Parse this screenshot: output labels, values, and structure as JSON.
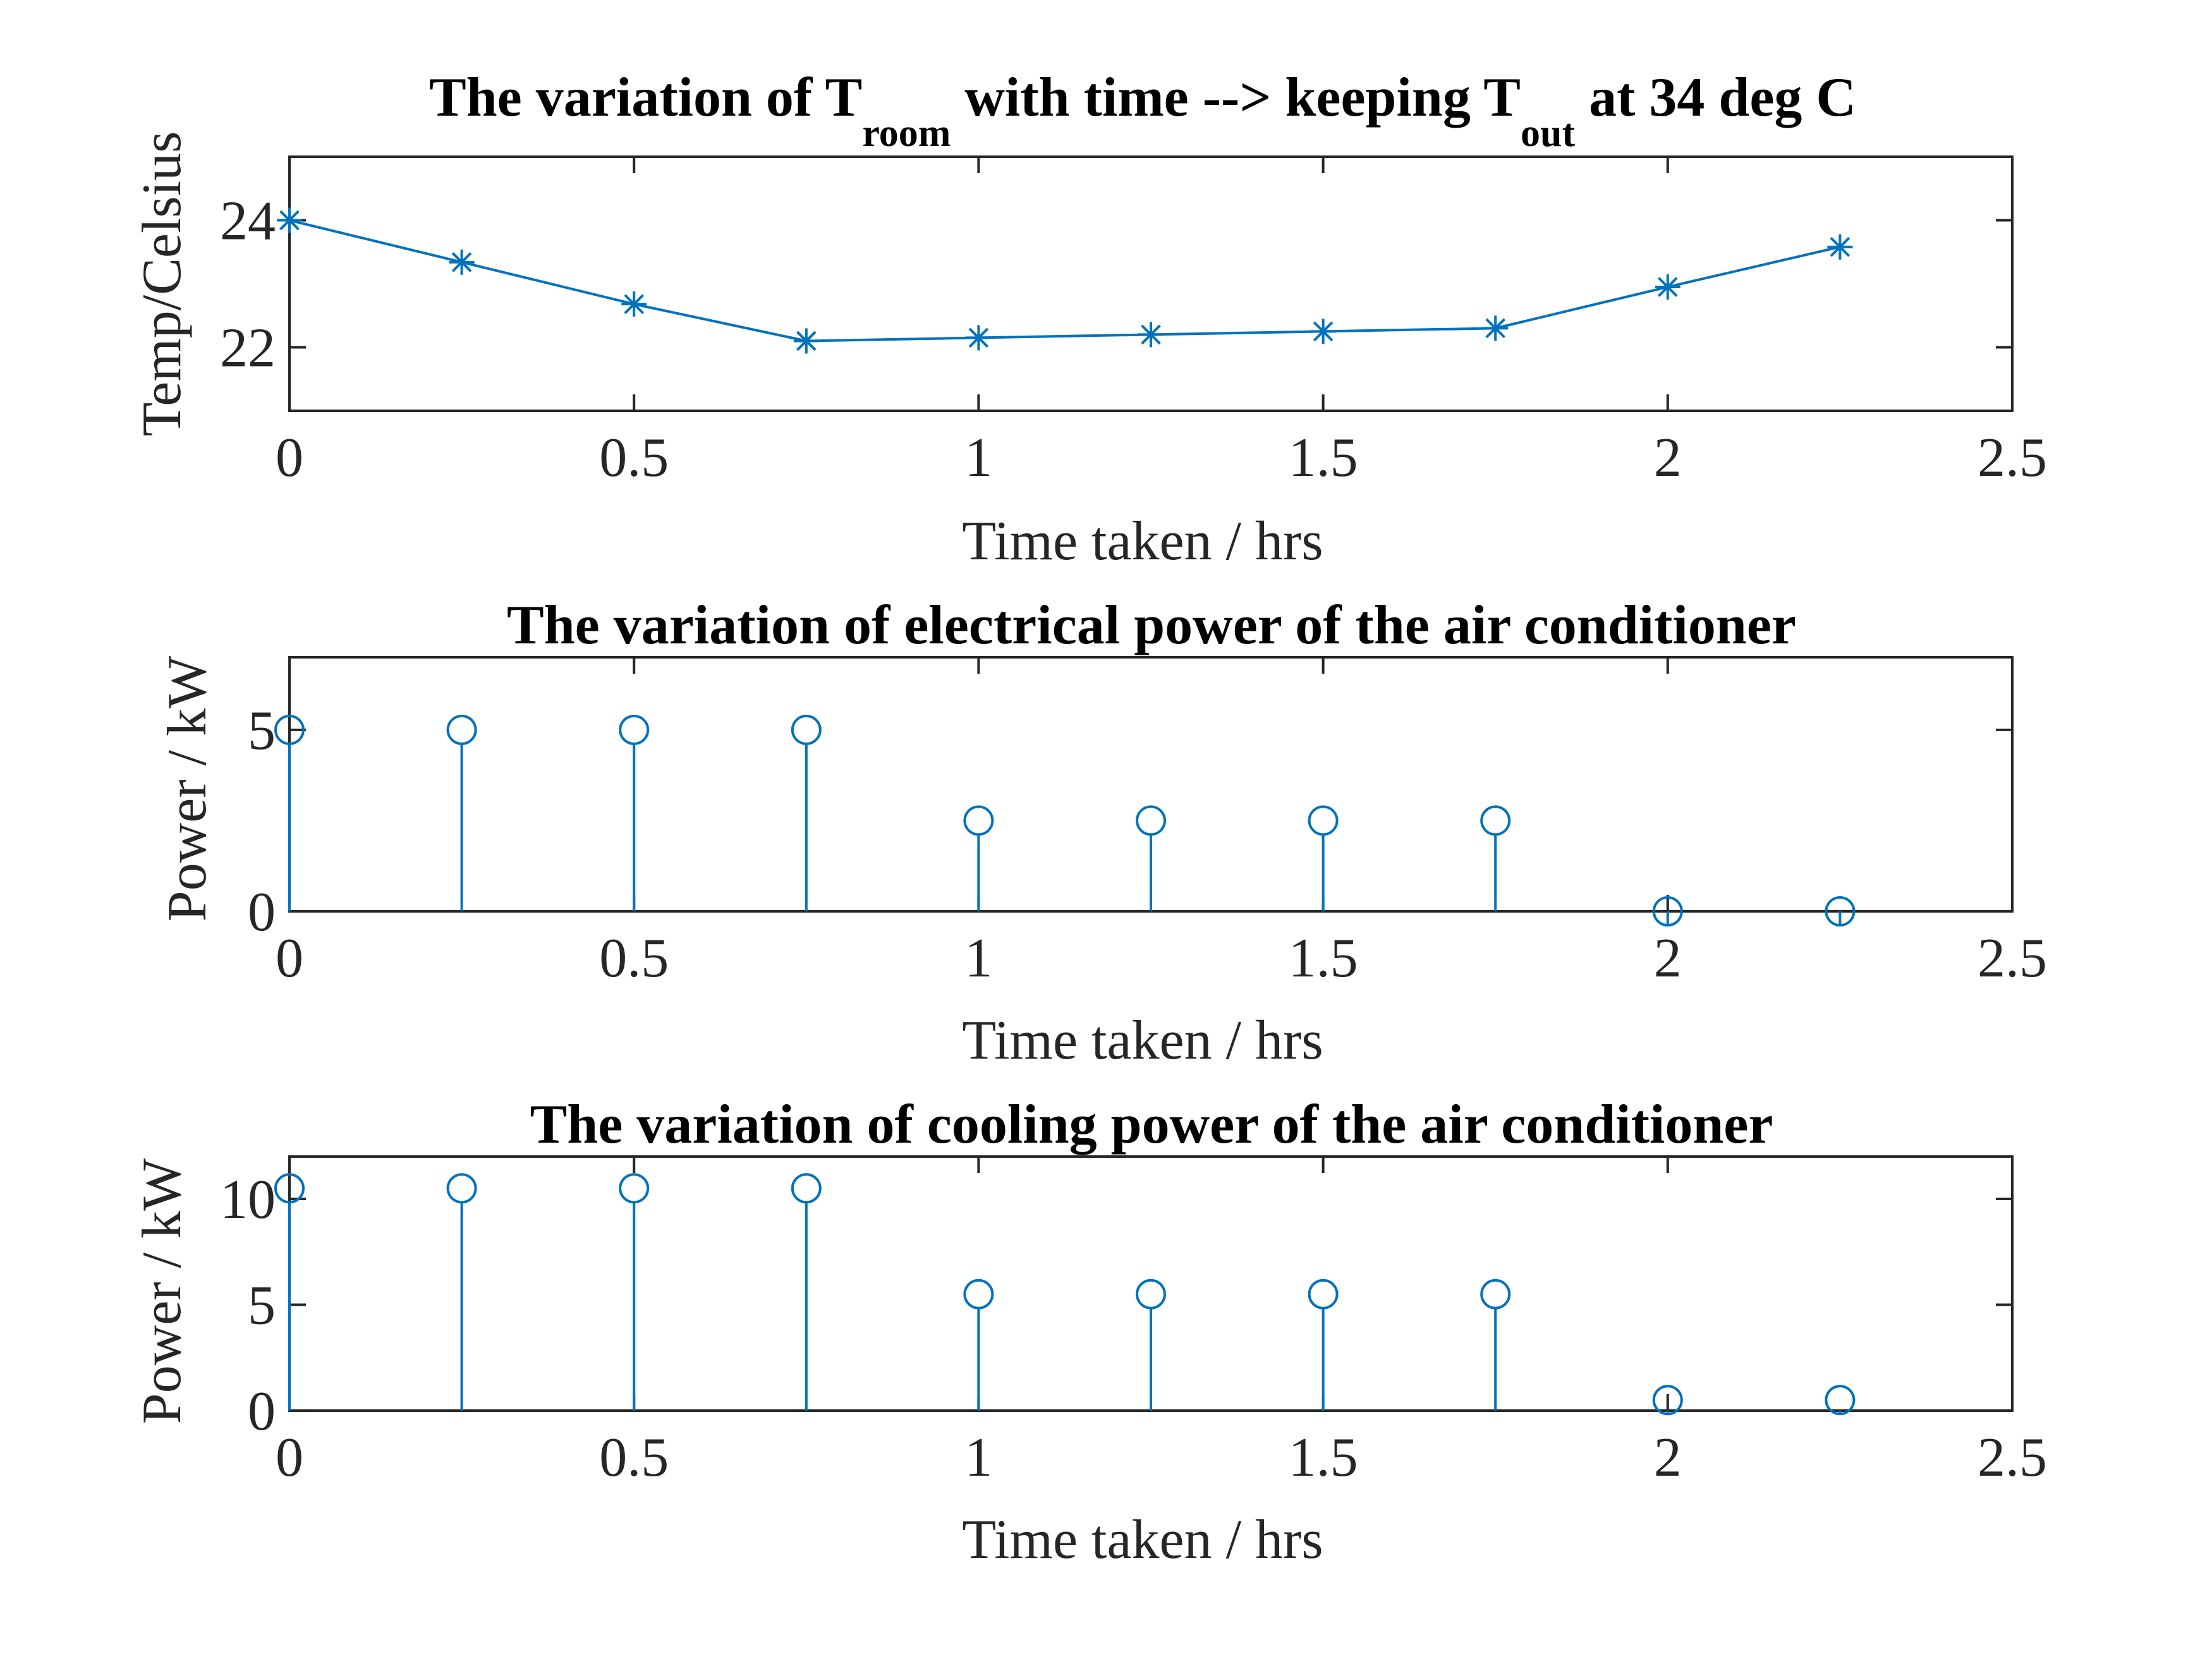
{
  "colors": {
    "series": "#0072BD",
    "axes": "#262626",
    "background": "#ffffff"
  },
  "chart_data": [
    {
      "type": "line",
      "marker": "asterisk",
      "title_parts": {
        "pre": "The variation of T",
        "sub1": "room",
        "mid": " with time --> keeping T",
        "sub2": "out",
        "post": " at 34 deg C"
      },
      "xlabel": "Time taken /  hrs",
      "ylabel": "Temp/Celsius",
      "xlim": [
        0,
        2.5
      ],
      "ylim": [
        21,
        25
      ],
      "xticks": [
        0,
        0.5,
        1,
        1.5,
        2,
        2.5
      ],
      "xtick_labels": [
        "0",
        "0.5",
        "1",
        "1.5",
        "2",
        "2.5"
      ],
      "yticks": [
        22,
        24
      ],
      "ytick_labels": [
        "22",
        "24"
      ],
      "x": [
        0,
        0.25,
        0.5,
        0.75,
        1,
        1.25,
        1.5,
        1.75,
        2,
        2.25
      ],
      "y": [
        24.0,
        23.34,
        22.68,
        22.1,
        22.15,
        22.2,
        22.25,
        22.3,
        22.95,
        23.58
      ]
    },
    {
      "type": "stem",
      "marker": "circle",
      "title": "The variation of electrical power of the air conditioner",
      "xlabel": "Time taken /  hrs",
      "ylabel": "Power / kW",
      "xlim": [
        0,
        2.5
      ],
      "ylim": [
        0,
        7
      ],
      "xticks": [
        0,
        0.5,
        1,
        1.5,
        2,
        2.5
      ],
      "xtick_labels": [
        "0",
        "0.5",
        "1",
        "1.5",
        "2",
        "2.5"
      ],
      "yticks": [
        0,
        5
      ],
      "ytick_labels": [
        "0",
        "5"
      ],
      "x": [
        0,
        0.25,
        0.5,
        0.75,
        1,
        1.25,
        1.5,
        1.75,
        2,
        2.25
      ],
      "y": [
        5,
        5,
        5,
        5,
        2.5,
        2.5,
        2.5,
        2.5,
        0,
        0
      ]
    },
    {
      "type": "stem",
      "marker": "circle",
      "title": "The variation of cooling power of the air conditioner",
      "xlabel": "Time taken /  hrs",
      "ylabel": "Power / kW",
      "xlim": [
        0,
        2.5
      ],
      "ylim": [
        0,
        12
      ],
      "xticks": [
        0,
        0.5,
        1,
        1.5,
        2,
        2.5
      ],
      "xtick_labels": [
        "0",
        "0.5",
        "1",
        "1.5",
        "2",
        "2.5"
      ],
      "yticks": [
        0,
        5,
        10
      ],
      "ytick_labels": [
        "0",
        "5",
        "10"
      ],
      "x": [
        0,
        0.25,
        0.5,
        0.75,
        1,
        1.25,
        1.5,
        1.75,
        2,
        2.25
      ],
      "y": [
        10.5,
        10.5,
        10.5,
        10.5,
        5.5,
        5.5,
        5.5,
        5.5,
        0.5,
        0.5
      ]
    }
  ]
}
